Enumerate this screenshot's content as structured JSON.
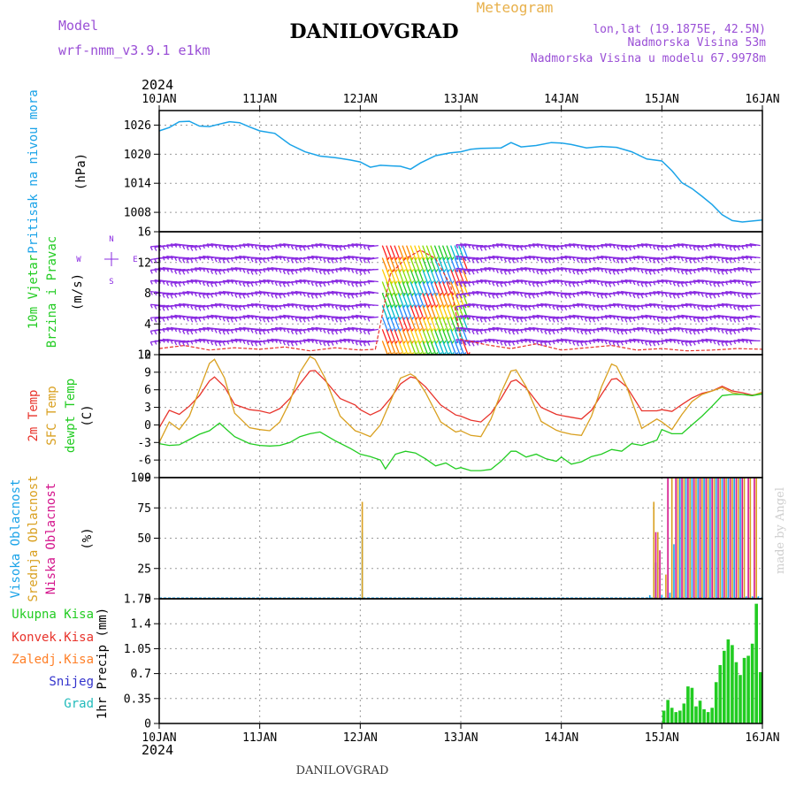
{
  "header": {
    "model_label": "Model",
    "model_name": "wrf-nmm_v3.9.1 e1km",
    "station": "DANILOVGRAD",
    "product": "Meteogram",
    "lonlat": "lon,lat (19.1875E, 42.5N)",
    "elevation": "Nadmorska Visina 53m",
    "model_elevation": "Nadmorska Visina u modelu 67.9978m",
    "footer_station": "DANILOVGRAD",
    "watermark": "made by Angel"
  },
  "colors": {
    "pressure": "#1aa3e8",
    "temp": "#e8332b",
    "sfc_temp": "#d9a020",
    "dewpt": "#22cc22",
    "wind": "#8a2be2",
    "high_cloud": "#1aa3e8",
    "mid_cloud": "#d9a020",
    "low_cloud": "#d4148c",
    "total_precip": "#22cc22",
    "conv_precip": "#e8332b",
    "frz_precip": "#ff7f27",
    "snow": "#3333cc",
    "hail": "#22bbbb",
    "header_text": "#9a4fd6"
  },
  "time_axis": {
    "year": "2024",
    "labels": [
      "10JAN",
      "11JAN",
      "12JAN",
      "13JAN",
      "14JAN",
      "15JAN",
      "16JAN"
    ],
    "range_days": [
      0,
      6
    ]
  },
  "chart_data": [
    {
      "type": "line",
      "name": "pressure",
      "ylabel_lines": [
        "Pritisak na nivou mora",
        "(hPa)"
      ],
      "yticks": [
        "1026",
        "1020",
        "1014",
        "1008"
      ],
      "ylim": [
        1004,
        1029
      ],
      "series": [
        {
          "name": "Pritisak na nivou mora",
          "x": [
            0.0,
            0.1,
            0.2,
            0.3,
            0.4,
            0.5,
            0.6,
            0.7,
            0.8,
            0.9,
            1.0,
            1.15,
            1.3,
            1.45,
            1.6,
            1.75,
            1.9,
            2.0,
            2.1,
            2.2,
            2.3,
            2.4,
            2.5,
            2.6,
            2.75,
            2.9,
            3.0,
            3.1,
            3.2,
            3.4,
            3.5,
            3.6,
            3.75,
            3.9,
            4.0,
            4.1,
            4.25,
            4.4,
            4.55,
            4.7,
            4.85,
            5.0,
            5.1,
            5.2,
            5.3,
            5.4,
            5.5,
            5.6,
            5.7,
            5.8,
            5.9,
            6.0
          ],
          "values": [
            1024.8,
            1025.5,
            1026.7,
            1026.8,
            1025.8,
            1025.7,
            1026.2,
            1026.7,
            1026.5,
            1025.6,
            1024.8,
            1024.3,
            1022.0,
            1020.5,
            1019.6,
            1019.3,
            1018.8,
            1018.4,
            1017.3,
            1017.7,
            1017.6,
            1017.5,
            1016.9,
            1018.2,
            1019.7,
            1020.3,
            1020.5,
            1021.0,
            1021.2,
            1021.3,
            1022.4,
            1021.5,
            1021.8,
            1022.4,
            1022.3,
            1022.0,
            1021.3,
            1021.6,
            1021.4,
            1020.5,
            1019.0,
            1018.6,
            1016.6,
            1014.1,
            1012.9,
            1011.3,
            1009.6,
            1007.5,
            1006.3,
            1006.0,
            1006.2,
            1006.4
          ]
        }
      ]
    },
    {
      "type": "scatter",
      "name": "wind",
      "ylabel_lines": [
        "10m Vjetar",
        "Brzina i Pravac",
        "(m/s)"
      ],
      "compass": [
        "N",
        "E",
        "S",
        "W"
      ],
      "yticks": [
        "16",
        "12",
        "8",
        "4",
        "0"
      ],
      "ylim": [
        0,
        16
      ],
      "barb_levels": [
        14.2,
        12.6,
        11.1,
        9.5,
        8.0,
        6.4,
        4.9,
        3.3,
        1.8
      ],
      "series": [
        {
          "name": "Brzina",
          "x": [
            0.0,
            0.25,
            0.5,
            0.75,
            1.0,
            1.25,
            1.5,
            1.75,
            2.0,
            2.15,
            2.3,
            2.45,
            2.6,
            2.75,
            2.9,
            3.0,
            3.25,
            3.5,
            3.75,
            4.0,
            4.25,
            4.5,
            4.75,
            5.0,
            5.25,
            5.5,
            5.75,
            6.0
          ],
          "values": [
            0.8,
            1.2,
            0.6,
            0.9,
            0.7,
            1.0,
            0.5,
            0.9,
            0.6,
            0.7,
            10.5,
            12.5,
            13.6,
            12.5,
            9.0,
            2.0,
            1.3,
            0.8,
            1.4,
            0.6,
            0.9,
            1.2,
            0.6,
            0.8,
            0.5,
            0.6,
            0.8,
            0.7
          ]
        }
      ]
    },
    {
      "type": "line",
      "name": "temperature",
      "ylabel_lines": [
        "2m Temp",
        "SFC Temp",
        "dewpt Temp",
        "(C)"
      ],
      "yticks": [
        "12",
        "9",
        "6",
        "3",
        "0",
        "-3",
        "-6",
        "-9"
      ],
      "ylim": [
        -9,
        12
      ],
      "series": [
        {
          "name": "2m Temp",
          "x": [
            0.0,
            0.1,
            0.2,
            0.3,
            0.4,
            0.5,
            0.55,
            0.65,
            0.75,
            0.9,
            1.0,
            1.1,
            1.2,
            1.3,
            1.4,
            1.5,
            1.55,
            1.65,
            1.8,
            1.95,
            2.0,
            2.1,
            2.2,
            2.3,
            2.4,
            2.5,
            2.55,
            2.65,
            2.8,
            2.95,
            3.0,
            3.1,
            3.2,
            3.3,
            3.4,
            3.5,
            3.55,
            3.65,
            3.8,
            3.95,
            4.0,
            4.1,
            4.2,
            4.3,
            4.4,
            4.5,
            4.55,
            4.65,
            4.8,
            4.95,
            5.0,
            5.1,
            5.2,
            5.3,
            5.4,
            5.5,
            5.6,
            5.7,
            5.8,
            5.9,
            6.0
          ],
          "values": [
            -0.5,
            2.5,
            1.8,
            3.2,
            5.0,
            7.5,
            8.2,
            6.5,
            3.5,
            2.6,
            2.4,
            2.0,
            2.8,
            4.5,
            7.0,
            9.2,
            9.3,
            7.6,
            4.5,
            3.4,
            2.6,
            1.7,
            2.5,
            4.5,
            7.0,
            8.2,
            8.0,
            6.5,
            3.4,
            1.7,
            1.5,
            0.8,
            0.5,
            2.0,
            4.5,
            7.4,
            7.7,
            6.3,
            3.0,
            1.8,
            1.6,
            1.3,
            1.0,
            2.5,
            5.2,
            7.8,
            7.9,
            6.5,
            2.4,
            2.4,
            2.6,
            2.3,
            3.5,
            4.6,
            5.4,
            5.8,
            6.6,
            5.8,
            5.5,
            5.1,
            5.3
          ]
        },
        {
          "name": "SFC Temp",
          "x": [
            0.0,
            0.1,
            0.2,
            0.3,
            0.4,
            0.5,
            0.55,
            0.65,
            0.75,
            0.9,
            1.0,
            1.1,
            1.2,
            1.3,
            1.4,
            1.5,
            1.55,
            1.65,
            1.8,
            1.95,
            2.0,
            2.1,
            2.2,
            2.3,
            2.4,
            2.5,
            2.55,
            2.65,
            2.8,
            2.95,
            3.0,
            3.1,
            3.2,
            3.3,
            3.4,
            3.5,
            3.55,
            3.65,
            3.8,
            3.95,
            4.0,
            4.1,
            4.2,
            4.3,
            4.4,
            4.5,
            4.55,
            4.65,
            4.8,
            4.95,
            5.0,
            5.1,
            5.2,
            5.3,
            5.4,
            5.5,
            5.6,
            5.7,
            5.8,
            5.9,
            6.0
          ],
          "values": [
            -3.0,
            0.5,
            -0.8,
            1.5,
            6.0,
            10.5,
            11.2,
            8.0,
            2.0,
            -0.5,
            -0.8,
            -1.0,
            0.5,
            4.0,
            9.0,
            11.7,
            11.2,
            8.0,
            1.5,
            -1.0,
            -1.3,
            -2.0,
            0.0,
            4.0,
            8.0,
            8.7,
            8.2,
            5.5,
            0.5,
            -1.2,
            -1.0,
            -1.8,
            -2.0,
            1.0,
            5.5,
            9.2,
            9.4,
            6.5,
            0.6,
            -0.9,
            -1.2,
            -1.6,
            -1.8,
            1.5,
            6.5,
            10.4,
            10.0,
            6.5,
            -0.6,
            1.0,
            0.5,
            -0.8,
            1.8,
            4.0,
            5.2,
            5.8,
            6.4,
            5.5,
            5.2,
            5.0,
            5.6
          ]
        },
        {
          "name": "dewpt Temp",
          "x": [
            0.0,
            0.1,
            0.2,
            0.3,
            0.4,
            0.5,
            0.6,
            0.75,
            0.9,
            1.0,
            1.1,
            1.2,
            1.3,
            1.4,
            1.5,
            1.6,
            1.75,
            1.9,
            2.0,
            2.1,
            2.2,
            2.25,
            2.35,
            2.45,
            2.55,
            2.65,
            2.75,
            2.85,
            2.95,
            3.0,
            3.1,
            3.2,
            3.3,
            3.4,
            3.5,
            3.55,
            3.65,
            3.75,
            3.85,
            3.95,
            4.0,
            4.1,
            4.2,
            4.3,
            4.4,
            4.5,
            4.6,
            4.7,
            4.8,
            4.95,
            5.0,
            5.1,
            5.2,
            5.3,
            5.4,
            5.5,
            5.6,
            5.7,
            5.8,
            5.9,
            6.0
          ],
          "values": [
            -3.2,
            -3.5,
            -3.4,
            -2.5,
            -1.6,
            -1.0,
            0.3,
            -2.0,
            -3.2,
            -3.5,
            -3.6,
            -3.5,
            -3.0,
            -2.0,
            -1.5,
            -1.2,
            -2.7,
            -4.0,
            -5.0,
            -5.4,
            -6.0,
            -7.5,
            -5.0,
            -4.5,
            -4.8,
            -5.8,
            -7.0,
            -6.5,
            -7.5,
            -7.3,
            -7.8,
            -7.8,
            -7.6,
            -6.2,
            -4.5,
            -4.5,
            -5.5,
            -5.0,
            -5.8,
            -6.2,
            -5.5,
            -6.7,
            -6.3,
            -5.4,
            -5.0,
            -4.2,
            -4.5,
            -3.2,
            -3.5,
            -2.6,
            -0.8,
            -1.5,
            -1.5,
            0.0,
            1.5,
            3.2,
            5.0,
            5.2,
            5.2,
            5.0,
            5.3
          ]
        }
      ]
    },
    {
      "type": "bar",
      "name": "cloud_cover",
      "ylabel_lines": [
        "Visoka Oblacnost",
        "Srednja Oblacnost",
        "Niska Oblacnost",
        "(%)"
      ],
      "yticks": [
        "100",
        "75",
        "50",
        "25",
        "0"
      ],
      "ylim": [
        0,
        100
      ],
      "series": [
        {
          "name": "Visoka Oblacnost",
          "x": [
            2.02,
            4.88,
            4.94,
            5.0,
            5.08,
            5.12,
            5.18,
            5.24,
            5.3,
            5.36,
            5.42,
            5.48,
            5.54,
            5.6,
            5.66,
            5.72,
            5.78,
            5.84,
            5.9,
            5.96
          ],
          "values": [
            55,
            3,
            30,
            3,
            5,
            45,
            100,
            100,
            100,
            100,
            100,
            100,
            100,
            100,
            100,
            100,
            100,
            2,
            2,
            2
          ]
        },
        {
          "name": "Srednja Oblacnost",
          "x": [
            2.02,
            4.92,
            4.96,
            5.04,
            5.1,
            5.16,
            5.22,
            5.28,
            5.34,
            5.4,
            5.46,
            5.52,
            5.58,
            5.64,
            5.7,
            5.76,
            5.82,
            5.88,
            5.94
          ],
          "values": [
            80,
            80,
            55,
            20,
            100,
            100,
            100,
            100,
            100,
            100,
            100,
            100,
            100,
            100,
            100,
            100,
            100,
            100,
            100
          ]
        },
        {
          "name": "Niska Oblacnost",
          "x": [
            4.94,
            4.98,
            5.06,
            5.14,
            5.2,
            5.26,
            5.32,
            5.38,
            5.44,
            5.5,
            5.56,
            5.62,
            5.68,
            5.74,
            5.8,
            5.86,
            5.92
          ],
          "values": [
            55,
            40,
            100,
            100,
            100,
            100,
            100,
            100,
            100,
            100,
            100,
            100,
            100,
            100,
            100,
            100,
            100
          ]
        }
      ]
    },
    {
      "type": "bar",
      "name": "precipitation",
      "ylabel_lines": [
        "1hr Precip (mm)"
      ],
      "legend": [
        "Ukupna Kisa",
        "Konvek.Kisa",
        "Zaledj.Kisa",
        "Snijeg",
        "Grad"
      ],
      "yticks": [
        "1.75",
        "1.4",
        "1.05",
        "0.7",
        "0.35",
        "0"
      ],
      "ylim": [
        0,
        1.75
      ],
      "series": [
        {
          "name": "Ukupna Kisa",
          "x": [
            5.02,
            5.06,
            5.1,
            5.14,
            5.18,
            5.22,
            5.26,
            5.3,
            5.34,
            5.38,
            5.42,
            5.46,
            5.5,
            5.54,
            5.58,
            5.62,
            5.66,
            5.7,
            5.74,
            5.78,
            5.82,
            5.86,
            5.9,
            5.94,
            5.98
          ],
          "values": [
            0.18,
            0.33,
            0.22,
            0.16,
            0.18,
            0.28,
            0.52,
            0.5,
            0.24,
            0.32,
            0.2,
            0.16,
            0.22,
            0.58,
            0.82,
            1.02,
            1.18,
            1.1,
            0.86,
            0.68,
            0.92,
            0.95,
            1.12,
            1.68,
            0.72
          ]
        }
      ]
    }
  ]
}
